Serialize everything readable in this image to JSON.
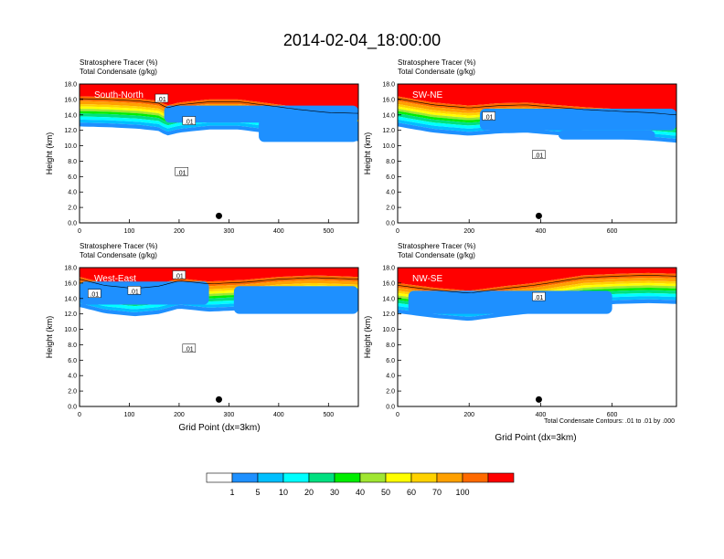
{
  "title": "2014-02-04_18:00:00",
  "chart_data": {
    "type": "heatmap",
    "title": "2014-02-04_18:00:00",
    "field_labels": [
      "Stratosphere Tracer   (%)",
      "Total Condensate   (g/kg)"
    ],
    "ylabel": "Height (km)",
    "xlabel": "Grid Point (dx=3km)",
    "ylim": [
      0,
      18
    ],
    "yticks": [
      "0.0",
      "2.0",
      "4.0",
      "6.0",
      "8.0",
      "10.0",
      "12.0",
      "14.0",
      "16.0",
      "18.0"
    ],
    "contour_note": "Total Condensate Contours: .01 to .01 by .000",
    "contour_label": ".01",
    "colorbar": {
      "levels": [
        "1",
        "5",
        "10",
        "20",
        "30",
        "40",
        "50",
        "60",
        "70",
        "100"
      ],
      "colors": [
        "#ffffff",
        "#1e90ff",
        "#00bfff",
        "#00ffff",
        "#00e080",
        "#00ee00",
        "#a0e632",
        "#ffff00",
        "#ffd200",
        "#ffa000",
        "#ff6a00",
        "#ff0000"
      ]
    },
    "panels": [
      {
        "name": "South-North",
        "xlim": [
          0,
          560
        ],
        "xticks": [
          0,
          100,
          200,
          300,
          400,
          500
        ],
        "marker_x": 280,
        "tropopause_km": [
          [
            0,
            16.4
          ],
          [
            60,
            16.3
          ],
          [
            120,
            16.1
          ],
          [
            160,
            15.8
          ],
          [
            175,
            15.2
          ],
          [
            200,
            15.6
          ],
          [
            260,
            16.0
          ],
          [
            320,
            16.0
          ],
          [
            380,
            15.5
          ],
          [
            440,
            15.0
          ],
          [
            500,
            14.6
          ],
          [
            560,
            14.5
          ]
        ],
        "anvil": [
          {
            "x0": 170,
            "x1": 560,
            "top_km": 15.2,
            "bottom_km": 13.0
          },
          {
            "x0": 360,
            "x1": 560,
            "top_km": 13.5,
            "bottom_km": 10.5
          }
        ],
        "contour_labels": [
          [
            165,
            16.1
          ],
          [
            220,
            13.2
          ],
          [
            205,
            6.6
          ]
        ]
      },
      {
        "name": "SW-NE",
        "xlim": [
          0,
          780
        ],
        "xticks": [
          0,
          200,
          400,
          600
        ],
        "marker_x": 395,
        "tropopause_km": [
          [
            0,
            16.4
          ],
          [
            100,
            15.6
          ],
          [
            200,
            15.2
          ],
          [
            280,
            15.5
          ],
          [
            360,
            15.6
          ],
          [
            440,
            15.3
          ],
          [
            520,
            15.0
          ],
          [
            600,
            14.8
          ],
          [
            700,
            14.6
          ],
          [
            780,
            14.3
          ]
        ],
        "anvil": [
          {
            "x0": 230,
            "x1": 780,
            "top_km": 14.8,
            "bottom_km": 12.0
          },
          {
            "x0": 450,
            "x1": 720,
            "top_km": 12.0,
            "bottom_km": 10.8
          }
        ],
        "contour_labels": [
          [
            255,
            13.8
          ],
          [
            395,
            8.8
          ]
        ]
      },
      {
        "name": "West-East",
        "xlim": [
          0,
          560
        ],
        "xticks": [
          0,
          100,
          200,
          300,
          400,
          500
        ],
        "marker_x": 280,
        "tropopause_km": [
          [
            0,
            16.8
          ],
          [
            50,
            16.0
          ],
          [
            110,
            15.6
          ],
          [
            160,
            15.9
          ],
          [
            200,
            16.6
          ],
          [
            260,
            16.2
          ],
          [
            330,
            16.4
          ],
          [
            400,
            16.8
          ],
          [
            470,
            17.0
          ],
          [
            560,
            16.8
          ]
        ],
        "anvil": [
          {
            "x0": 0,
            "x1": 260,
            "top_km": 16.2,
            "bottom_km": 13.2
          },
          {
            "x0": 310,
            "x1": 560,
            "top_km": 15.6,
            "bottom_km": 12.0
          }
        ],
        "contour_labels": [
          [
            30,
            14.6
          ],
          [
            110,
            15.0
          ],
          [
            200,
            17.0
          ],
          [
            220,
            7.5
          ]
        ]
      },
      {
        "name": "NW-SE",
        "xlim": [
          0,
          780
        ],
        "xticks": [
          0,
          200,
          400,
          600
        ],
        "marker_x": 395,
        "tropopause_km": [
          [
            0,
            16.0
          ],
          [
            100,
            15.4
          ],
          [
            200,
            15.0
          ],
          [
            300,
            15.6
          ],
          [
            380,
            16.0
          ],
          [
            450,
            16.5
          ],
          [
            520,
            17.0
          ],
          [
            620,
            17.2
          ],
          [
            700,
            17.3
          ],
          [
            780,
            17.2
          ]
        ],
        "anvil": [
          {
            "x0": 30,
            "x1": 600,
            "top_km": 15.0,
            "bottom_km": 12.0
          }
        ],
        "contour_labels": [
          [
            395,
            14.2
          ]
        ]
      }
    ]
  }
}
